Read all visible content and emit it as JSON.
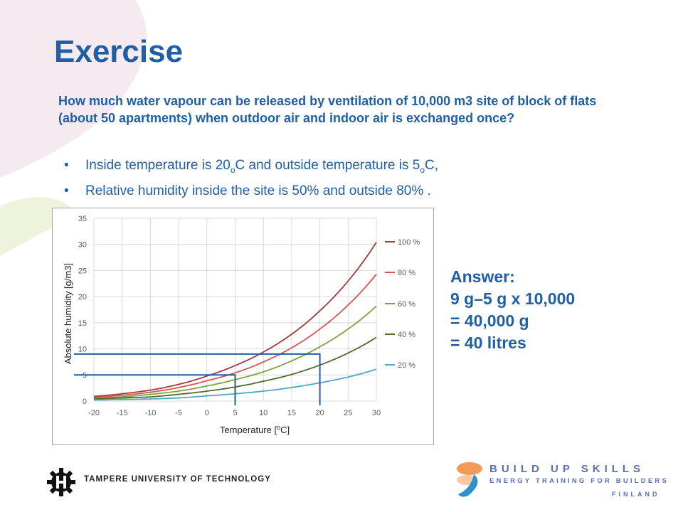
{
  "slide": {
    "title": "Exercise",
    "question": "How much water vapour can be released by ventilation of 10,000 m3 site of block of flats (about 50 apartments) when outdoor air and indoor air is exchanged once?",
    "bullets": [
      {
        "text_a": "Inside temperature is 20",
        "sup1": "o",
        "text_b": "C and outside temperature is 5",
        "sup2": "o",
        "text_c": "C,"
      },
      {
        "text": "Relative humidity inside the site is 50% and outside 80% ."
      }
    ],
    "answer": {
      "heading": "Answer:",
      "line1": "9 g–5 g x 10,000",
      "line2": "= 40,000 g",
      "line3": "= 40 litres"
    }
  },
  "footer": {
    "university": "TAMPERE UNIVERSITY OF TECHNOLOGY",
    "brand": "BUILD UP SKILLS",
    "brand_sub": "ENERGY TRAINING FOR BUILDERS",
    "country": "FINLAND"
  },
  "chart_data": {
    "type": "line",
    "xlabel_main": "Temperature [",
    "xlabel_sup": "o",
    "xlabel_end": "C]",
    "ylabel": "Absolute humidity [g/m3]",
    "xlim": [
      -20,
      30
    ],
    "ylim": [
      0,
      35
    ],
    "x_ticks": [
      "-20",
      "-15",
      "-10",
      "-5",
      "0",
      "5",
      "10",
      "15",
      "20",
      "25",
      "30"
    ],
    "y_ticks": [
      "0",
      "5",
      "10",
      "15",
      "20",
      "25",
      "30",
      "35"
    ],
    "grid": true,
    "legend": "right",
    "x": [
      -20,
      -15,
      -10,
      -5,
      0,
      5,
      10,
      15,
      20,
      25,
      30
    ],
    "series": [
      {
        "name": "100 %",
        "color": "#a33a3a",
        "values": [
          0.9,
          1.4,
          2.1,
          3.2,
          4.8,
          6.8,
          9.4,
          12.8,
          17.3,
          23.0,
          30.4
        ]
      },
      {
        "name": "80 %",
        "color": "#d9534f",
        "values": [
          0.7,
          1.1,
          1.7,
          2.6,
          3.9,
          5.4,
          7.5,
          10.2,
          13.8,
          18.4,
          24.3
        ]
      },
      {
        "name": "60 %",
        "color": "#7ea33a",
        "values": [
          0.5,
          0.8,
          1.3,
          1.9,
          2.9,
          4.1,
          5.6,
          7.7,
          10.4,
          13.8,
          18.2
        ]
      },
      {
        "name": "40 %",
        "color": "#4e6b2a",
        "values": [
          0.4,
          0.6,
          0.8,
          1.3,
          1.9,
          2.7,
          3.8,
          5.1,
          6.9,
          9.2,
          12.2
        ]
      },
      {
        "name": "20 %",
        "color": "#4aa7c9",
        "values": [
          0.2,
          0.3,
          0.4,
          0.6,
          1.0,
          1.4,
          1.9,
          2.6,
          3.5,
          4.6,
          6.1
        ]
      }
    ],
    "guides": [
      {
        "x": 5,
        "y": 5,
        "color": "#1f5fa6"
      },
      {
        "x": 20,
        "y": 9,
        "color": "#1f5fa6"
      }
    ]
  }
}
